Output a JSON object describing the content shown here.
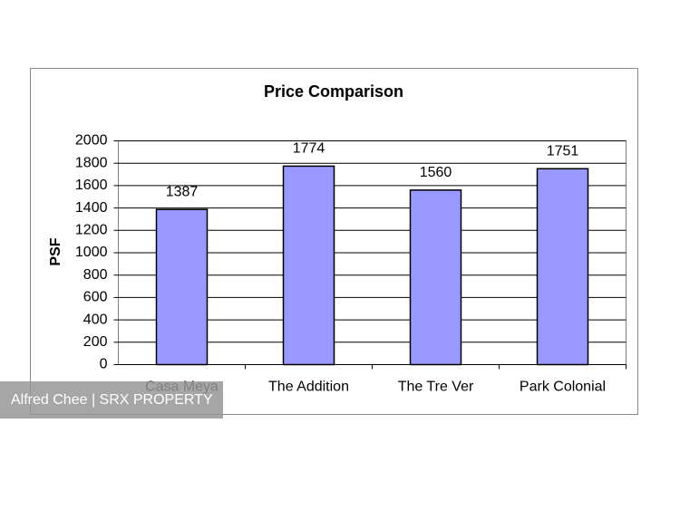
{
  "chart_data": {
    "type": "bar",
    "title": "Price Comparison",
    "y_label": "PSF",
    "categories": [
      "Casa Meya",
      "The Addition",
      "The Tre Ver",
      "Park Colonial"
    ],
    "values": [
      1387,
      1774,
      1560,
      1751
    ],
    "color": "#9999ff",
    "ylim": [
      0,
      2000
    ],
    "yticks": [
      0,
      200,
      400,
      600,
      800,
      1000,
      1200,
      1400,
      1600,
      1800,
      2000
    ],
    "grid": true
  },
  "watermark": "Alfred Chee | SRX PROPERTY"
}
